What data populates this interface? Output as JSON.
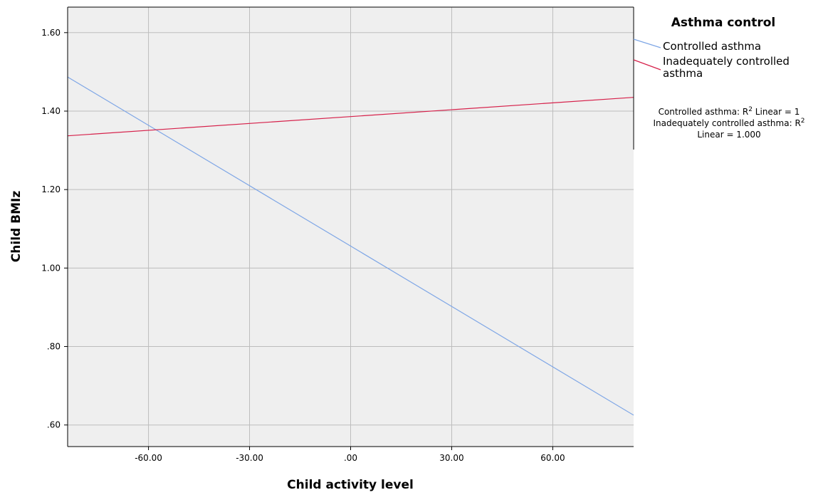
{
  "chart_data": {
    "type": "line",
    "xlabel": "Child activity level",
    "ylabel": "Child BMIz",
    "xlim": [
      -84,
      84
    ],
    "ylim": [
      0.545,
      1.665
    ],
    "grid": true,
    "x_ticks": [
      -60,
      -30,
      0,
      30,
      60
    ],
    "x_tick_labels": [
      "-60.00",
      "-30.00",
      ".00",
      "30.00",
      "60.00"
    ],
    "y_ticks": [
      0.6,
      0.8,
      1.0,
      1.2,
      1.4,
      1.6
    ],
    "y_tick_labels": [
      ".60",
      ".80",
      "1.00",
      "1.20",
      "1.40",
      "1.60"
    ],
    "legend": {
      "title": "Asthma control",
      "placement": "right",
      "entries": [
        {
          "label": "Controlled asthma"
        },
        {
          "label_line1": "Inadequately controlled",
          "label_line2": "asthma"
        }
      ]
    },
    "fit_annotation": {
      "line1_prefix": "Controlled asthma: R",
      "line1_sup": "2",
      "line1_suffix": " Linear = 1",
      "line2_prefix": "Inadequately controlled asthma: R",
      "line2_sup": "2",
      "line3": "Linear = 1.000"
    },
    "series": [
      {
        "name": "Controlled asthma",
        "color": "#7ea6e6",
        "x": [
          -84,
          84
        ],
        "y": [
          1.487,
          0.625
        ]
      },
      {
        "name": "Inadequately controlled asthma",
        "color": "#d6204a",
        "x": [
          -84,
          84
        ],
        "y": [
          1.337,
          1.435
        ]
      }
    ],
    "colors": {
      "plot_background": "#efefef",
      "grid": "#bdbdbd",
      "frame": "#000000"
    }
  }
}
